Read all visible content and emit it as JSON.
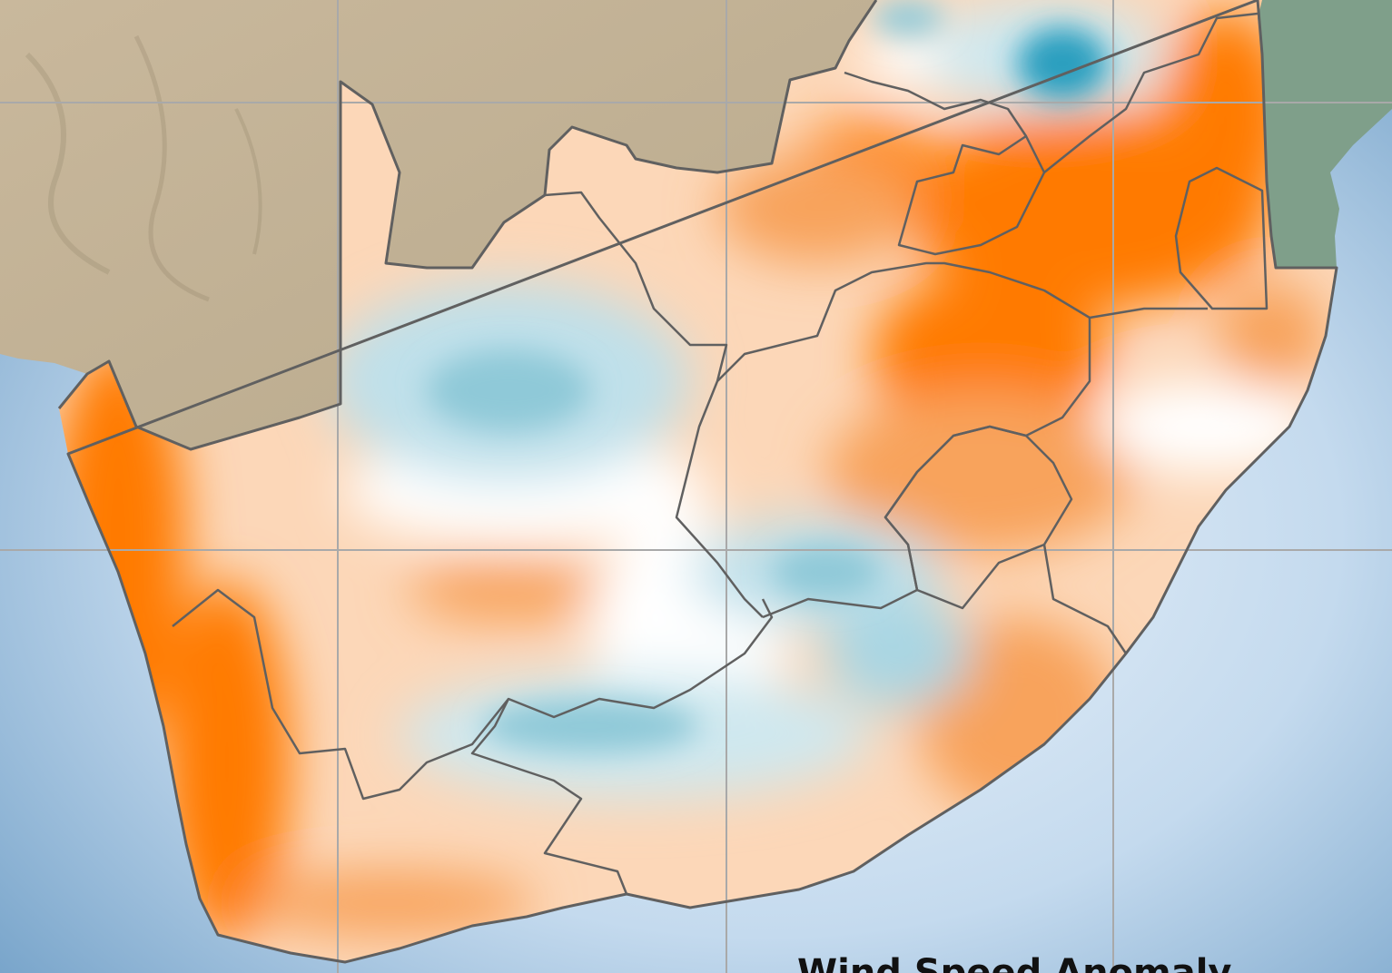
{
  "map": {
    "title": "Wind Speed Anomaly",
    "region": "South Africa",
    "colors": {
      "ocean": "#7aa6cc",
      "ocean_light": "#e6f1fb",
      "land_outside": "#cdbfa5",
      "land_east": "#7f9f8a",
      "positive_strong": "#ff7a00",
      "positive_medium": "#f8a35c",
      "positive_light": "#fcd7b8",
      "neutral": "#ffffff",
      "negative_light": "#cfe8ef",
      "negative_medium": "#8fc9d8",
      "negative_strong": "#2a9fbf",
      "boundary": "#606060",
      "graticule": "#a9a9a9"
    }
  }
}
